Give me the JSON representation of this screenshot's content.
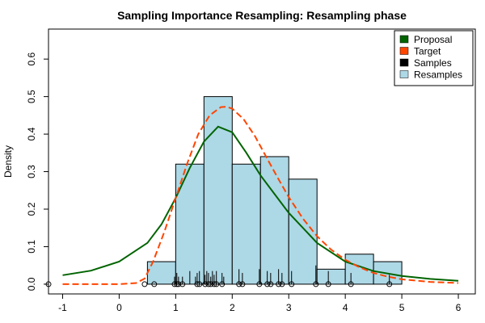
{
  "chart_data": {
    "type": "histogram",
    "title": "Sampling Importance Resampling: Resampling phase",
    "xlabel": "",
    "ylabel": "Density",
    "xlim": [
      -1.25,
      6.3
    ],
    "ylim": [
      -0.026,
      0.68
    ],
    "x_ticks": [
      -1,
      0,
      1,
      2,
      3,
      4,
      5,
      6
    ],
    "y_ticks": [
      0.0,
      0.1,
      0.2,
      0.3,
      0.4,
      0.5,
      0.6
    ],
    "x_tick_labels": [
      "-1",
      "0",
      "1",
      "2",
      "3",
      "4",
      "5",
      "6"
    ],
    "y_tick_labels": [
      "0.0",
      "0.1",
      "0.2",
      "0.3",
      "0.4",
      "0.5",
      "0.6"
    ],
    "colors": {
      "proposal": "#006400",
      "target": "#FF4500",
      "samples": "#000000",
      "resamples": "#ADD8E6"
    },
    "legend": {
      "position": "top-right",
      "entries": [
        {
          "label": "Proposal",
          "color": "#006400"
        },
        {
          "label": "Target",
          "color": "#FF4500"
        },
        {
          "label": "Samples",
          "color": "#000000"
        },
        {
          "label": "Resamples",
          "color": "#ADD8E6"
        }
      ]
    },
    "histogram_bins": [
      {
        "x0": 0.5,
        "x1": 1.0,
        "density": 0.06
      },
      {
        "x0": 1.0,
        "x1": 1.5,
        "density": 0.32
      },
      {
        "x0": 1.5,
        "x1": 2.0,
        "density": 0.5
      },
      {
        "x0": 2.0,
        "x1": 2.5,
        "density": 0.32
      },
      {
        "x0": 2.5,
        "x1": 3.0,
        "density": 0.34
      },
      {
        "x0": 3.0,
        "x1": 3.5,
        "density": 0.28
      },
      {
        "x0": 3.5,
        "x1": 4.0,
        "density": 0.04
      },
      {
        "x0": 4.0,
        "x1": 4.5,
        "density": 0.08
      },
      {
        "x0": 4.5,
        "x1": 5.0,
        "density": 0.06
      }
    ],
    "proposal_curve": {
      "x": [
        -1.0,
        -0.5,
        0.0,
        0.5,
        0.75,
        1.0,
        1.25,
        1.5,
        1.75,
        2.0,
        2.25,
        2.5,
        2.75,
        3.0,
        3.5,
        4.0,
        4.5,
        5.0,
        5.5,
        6.0
      ],
      "y": [
        0.024,
        0.036,
        0.06,
        0.11,
        0.16,
        0.23,
        0.31,
        0.38,
        0.42,
        0.405,
        0.35,
        0.29,
        0.24,
        0.19,
        0.11,
        0.06,
        0.035,
        0.022,
        0.014,
        0.009
      ]
    },
    "target_curve": {
      "x": [
        -1.0,
        0.0,
        0.3,
        0.45,
        0.6,
        0.8,
        1.0,
        1.2,
        1.4,
        1.6,
        1.8,
        1.9,
        2.0,
        2.2,
        2.4,
        2.6,
        2.8,
        3.0,
        3.25,
        3.5,
        3.75,
        4.0,
        4.25,
        4.5,
        4.75,
        5.0,
        5.5,
        6.0
      ],
      "y": [
        0.0,
        0.0,
        0.003,
        0.015,
        0.06,
        0.14,
        0.23,
        0.32,
        0.4,
        0.45,
        0.472,
        0.473,
        0.468,
        0.44,
        0.395,
        0.34,
        0.285,
        0.232,
        0.175,
        0.128,
        0.092,
        0.065,
        0.045,
        0.03,
        0.02,
        0.013,
        0.006,
        0.003
      ]
    },
    "samples": [
      -1.25,
      0.45,
      0.62,
      0.98,
      1.02,
      1.05,
      1.12,
      1.38,
      1.42,
      1.52,
      1.58,
      1.62,
      1.68,
      1.72,
      1.82,
      2.12,
      2.18,
      2.48,
      2.62,
      2.68,
      2.82,
      2.88,
      3.05,
      3.48,
      3.7,
      4.1,
      4.78
    ],
    "resample_ticks": [
      {
        "x": 0.98,
        "h": 0.02
      },
      {
        "x": 1.02,
        "h": 0.03
      },
      {
        "x": 1.05,
        "h": 0.02
      },
      {
        "x": 1.12,
        "h": 0.02
      },
      {
        "x": 1.25,
        "h": 0.035
      },
      {
        "x": 1.35,
        "h": 0.02
      },
      {
        "x": 1.38,
        "h": 0.03
      },
      {
        "x": 1.42,
        "h": 0.035
      },
      {
        "x": 1.52,
        "h": 0.025
      },
      {
        "x": 1.55,
        "h": 0.035
      },
      {
        "x": 1.58,
        "h": 0.03
      },
      {
        "x": 1.62,
        "h": 0.02
      },
      {
        "x": 1.65,
        "h": 0.035
      },
      {
        "x": 1.68,
        "h": 0.025
      },
      {
        "x": 1.72,
        "h": 0.035
      },
      {
        "x": 1.82,
        "h": 0.03
      },
      {
        "x": 1.85,
        "h": 0.02
      },
      {
        "x": 2.12,
        "h": 0.04
      },
      {
        "x": 2.18,
        "h": 0.03
      },
      {
        "x": 2.48,
        "h": 0.04
      },
      {
        "x": 2.62,
        "h": 0.035
      },
      {
        "x": 2.68,
        "h": 0.03
      },
      {
        "x": 2.82,
        "h": 0.04
      },
      {
        "x": 2.88,
        "h": 0.03
      },
      {
        "x": 3.05,
        "h": 0.035
      },
      {
        "x": 3.48,
        "h": 0.05
      },
      {
        "x": 3.7,
        "h": 0.035
      },
      {
        "x": 4.1,
        "h": 0.03
      },
      {
        "x": 4.78,
        "h": 0.025
      }
    ]
  }
}
